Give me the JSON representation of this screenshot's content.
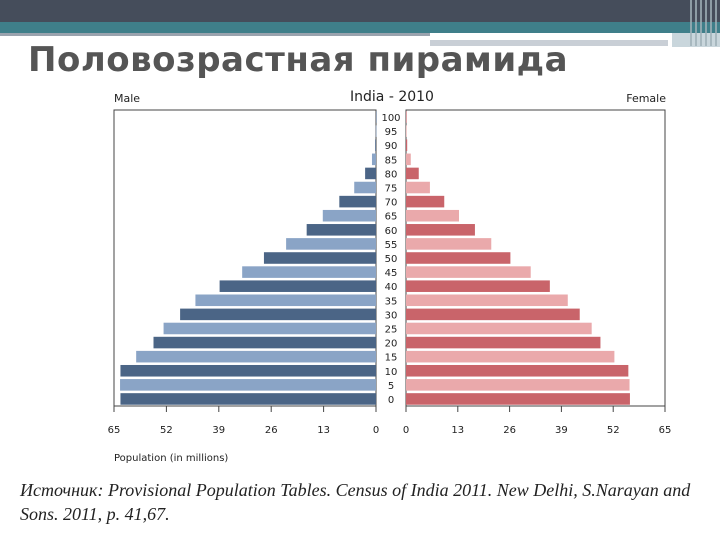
{
  "slide": {
    "title": "Половозрастная пирамида",
    "source": "Источник: Provisional Population Tables. Census of India 2011. New Delhi, S.Narayan and Sons. 2011, p. 41,67."
  },
  "chart_data": {
    "type": "bar",
    "orientation": "horizontal",
    "title": "India - 2010",
    "left_label": "Male",
    "right_label": "Female",
    "xlabel": "Population (in millions)",
    "age_groups": [
      "0",
      "5",
      "10",
      "15",
      "20",
      "25",
      "30",
      "35",
      "40",
      "45",
      "50",
      "55",
      "60",
      "65",
      "70",
      "75",
      "80",
      "85",
      "90",
      "95",
      "100"
    ],
    "series": [
      {
        "name": "Male",
        "values": [
          63.4,
          63.5,
          63.4,
          59.5,
          55.2,
          52.7,
          48.6,
          44.8,
          38.8,
          33.2,
          27.8,
          22.3,
          17.2,
          13.2,
          9.1,
          5.4,
          2.7,
          1.0,
          0.2,
          0.05,
          0.01
        ]
      },
      {
        "name": "Female",
        "values": [
          56.2,
          56.1,
          55.8,
          52.3,
          48.8,
          46.6,
          43.6,
          40.6,
          36.1,
          31.3,
          26.2,
          21.4,
          17.3,
          13.3,
          9.6,
          6.0,
          3.2,
          1.2,
          0.3,
          0.05,
          0.01
        ]
      }
    ],
    "xlim": [
      0,
      65
    ],
    "x_ticks_left": [
      "65",
      "52",
      "39",
      "26",
      "13",
      "0"
    ],
    "x_ticks_right": [
      "0",
      "13",
      "26",
      "39",
      "52",
      "65"
    ],
    "colors": {
      "male_dark": "#4b6586",
      "male_light": "#8aa4c6",
      "female_dark": "#c9646a",
      "female_light": "#eaa9ab"
    },
    "grid": false,
    "legend": "none"
  }
}
